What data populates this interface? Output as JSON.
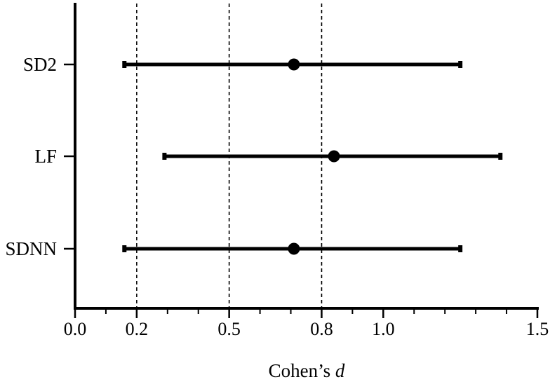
{
  "chart_data": {
    "type": "forest",
    "xlabel_prefix": "Cohen’s ",
    "xlabel_var": "d",
    "xlim": [
      0,
      1.5
    ],
    "x_ticks": [
      {
        "value": 0,
        "label": "0.0"
      },
      {
        "value": 0.2,
        "label": "0.2"
      },
      {
        "value": 0.5,
        "label": "0.5"
      },
      {
        "value": 0.8,
        "label": "0.8"
      },
      {
        "value": 1.0,
        "label": "1.0"
      },
      {
        "value": 1.5,
        "label": "1.5"
      }
    ],
    "x_minor_ticks": [
      0.1,
      0.3,
      0.4,
      0.6,
      0.7,
      0.9,
      1.1,
      1.2,
      1.3,
      1.4
    ],
    "reference_lines": [
      0.2,
      0.5,
      0.8
    ],
    "rows": [
      {
        "label": "SD2",
        "estimate": 0.71,
        "lower": 0.16,
        "upper": 1.25
      },
      {
        "label": "LF",
        "estimate": 0.84,
        "lower": 0.29,
        "upper": 1.38
      },
      {
        "label": "SDNN",
        "estimate": 0.71,
        "lower": 0.16,
        "upper": 1.25
      }
    ],
    "colors": {
      "marker": "#000000",
      "reference_line": "#000000"
    },
    "grid": false,
    "legend": false
  }
}
